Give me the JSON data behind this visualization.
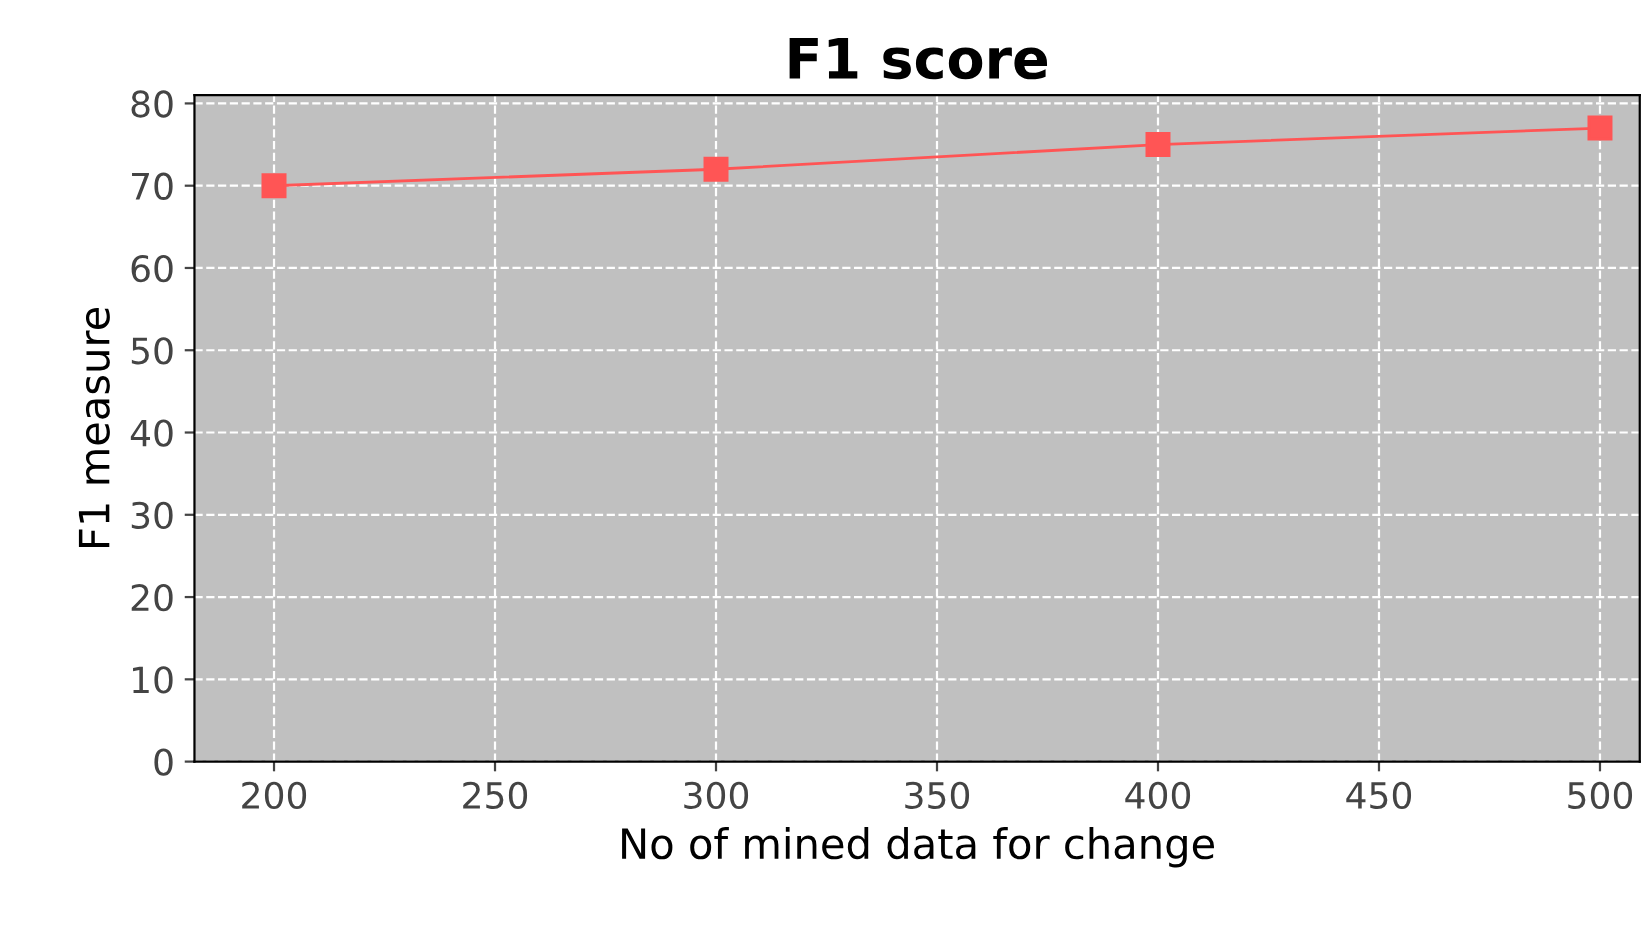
{
  "chart_data": {
    "type": "line",
    "title": "F1 score",
    "xlabel": "No of mined data for change",
    "ylabel": "F1 measure",
    "x": [
      200,
      300,
      400,
      500
    ],
    "series": [
      {
        "color": "#ff5555",
        "values": [
          70,
          72,
          75,
          77
        ]
      }
    ],
    "xlim": [
      182,
      509
    ],
    "xticks": [
      200,
      250,
      300,
      350,
      400,
      450,
      500
    ],
    "ylim": [
      0,
      81
    ],
    "yticks": [
      0,
      10,
      20,
      30,
      40,
      50,
      60,
      70,
      80
    ],
    "grid": true,
    "marker": "square",
    "line_style": "solid"
  }
}
